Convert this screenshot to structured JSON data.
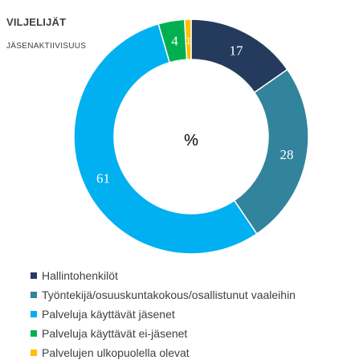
{
  "chart_data": {
    "type": "pie",
    "title": "VILJELIJÄT",
    "subtitle": "JÄSENAKTIIVISUUS",
    "center_label": "%",
    "series": [
      {
        "name": "Hallintohenkilöt",
        "value": 17,
        "label": "17",
        "color": "#243B5E"
      },
      {
        "name": "Työntekijä/osuuskuntakokous/osallistunut vaaleihin",
        "value": 28,
        "label": "28",
        "color": "#31849B"
      },
      {
        "name": "Palveluja käyttävät jäsenet",
        "value": 61,
        "label": "61",
        "color": "#00B0F0"
      },
      {
        "name": "Palveluja käyttävät ei-jäsenet",
        "value": 4,
        "label": "4",
        "color": "#00B050"
      },
      {
        "name": "Palvelujen ulkopuolella olevat",
        "value": 1,
        "label": "1",
        "color": "#FFC000"
      }
    ],
    "legend_position": "bottom-left"
  }
}
